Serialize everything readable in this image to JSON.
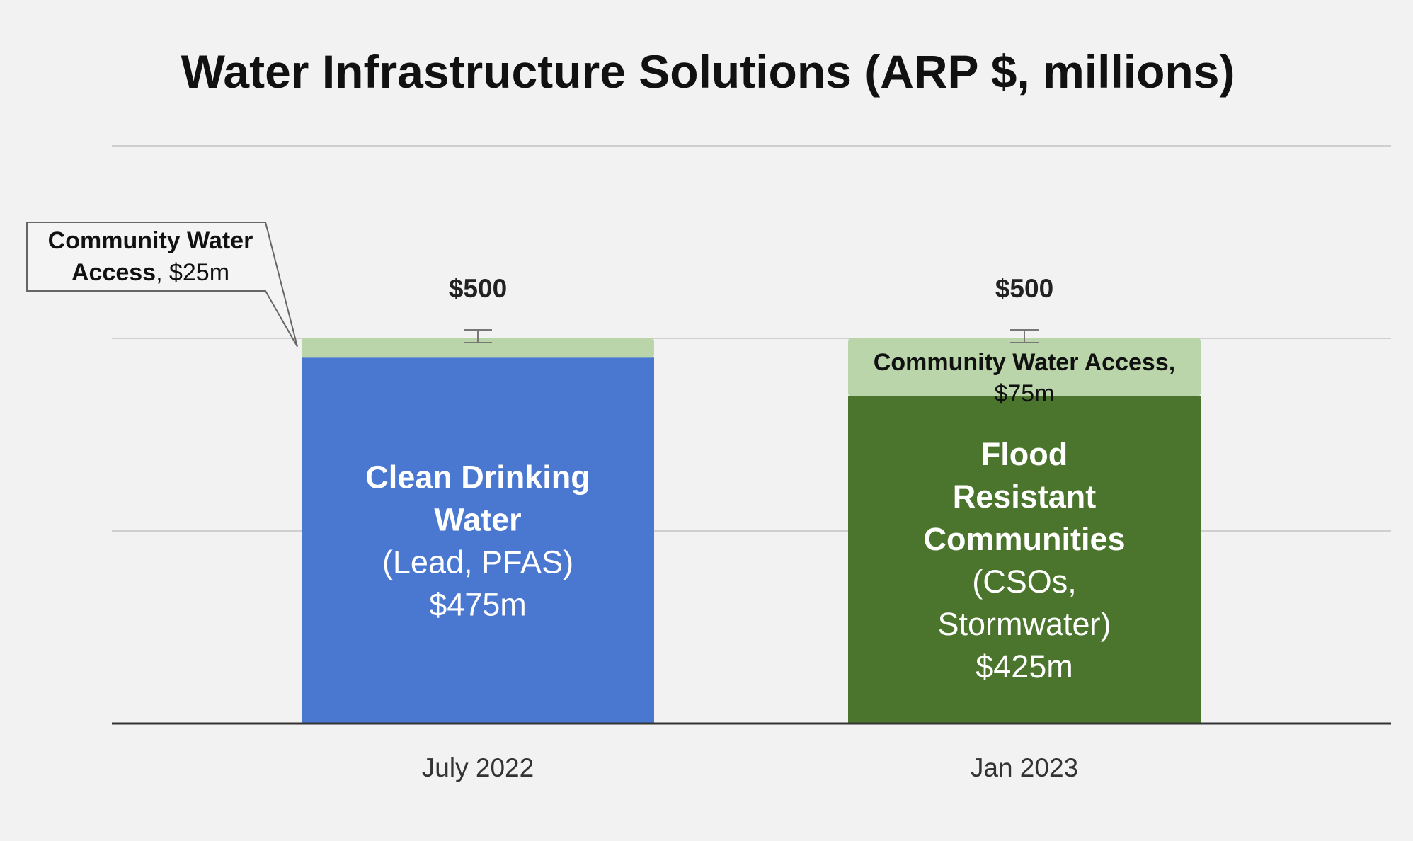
{
  "chart_data": {
    "type": "bar",
    "stacked": true,
    "title": "Water Infrastructure Solutions (ARP $, millions)",
    "xlabel": "",
    "ylabel": "",
    "ylim": [
      0,
      750
    ],
    "grid": true,
    "categories": [
      "July 2022",
      "Jan 2023"
    ],
    "totals": [
      "$500",
      "$500"
    ],
    "colors": {
      "clean_drinking_water": "#4a78d1",
      "flood_resistant": "#4b742c",
      "community_access": "#b9d5a9",
      "gridline": "#cfcfcf",
      "axis": "#333333",
      "background": "#f2f2f2"
    },
    "bars": [
      {
        "category": "July 2022",
        "total": 500,
        "segments": [
          {
            "series": "Clean Drinking Water",
            "value": 475,
            "color": "#4a78d1",
            "label_lines": [
              {
                "text": "Clean Drinking",
                "bold": true
              },
              {
                "text": "Water",
                "bold": true
              },
              {
                "text": "(Lead, PFAS)",
                "bold": false
              },
              {
                "text": "$475m",
                "bold": false
              }
            ]
          },
          {
            "series": "Community Water Access",
            "value": 25,
            "color": "#b9d5a9",
            "callout": {
              "line1": "Community Water",
              "line2_bold": "Access",
              "line2_plain": ", $25m"
            }
          }
        ]
      },
      {
        "category": "Jan 2023",
        "total": 500,
        "segments": [
          {
            "series": "Flood Resistant Communities",
            "value": 425,
            "color": "#4b742c",
            "label_lines": [
              {
                "text": "Flood",
                "bold": true
              },
              {
                "text": "Resistant",
                "bold": true
              },
              {
                "text": "Communities",
                "bold": true
              },
              {
                "text": "(CSOs,",
                "bold": false
              },
              {
                "text": "Stormwater)",
                "bold": false
              },
              {
                "text": "$425m",
                "bold": false
              }
            ]
          },
          {
            "series": "Community Water Access",
            "value": 75,
            "color": "#b9d5a9",
            "inner_label": {
              "line1": "Community Water Access,",
              "line2": "$75m"
            }
          }
        ]
      }
    ]
  }
}
